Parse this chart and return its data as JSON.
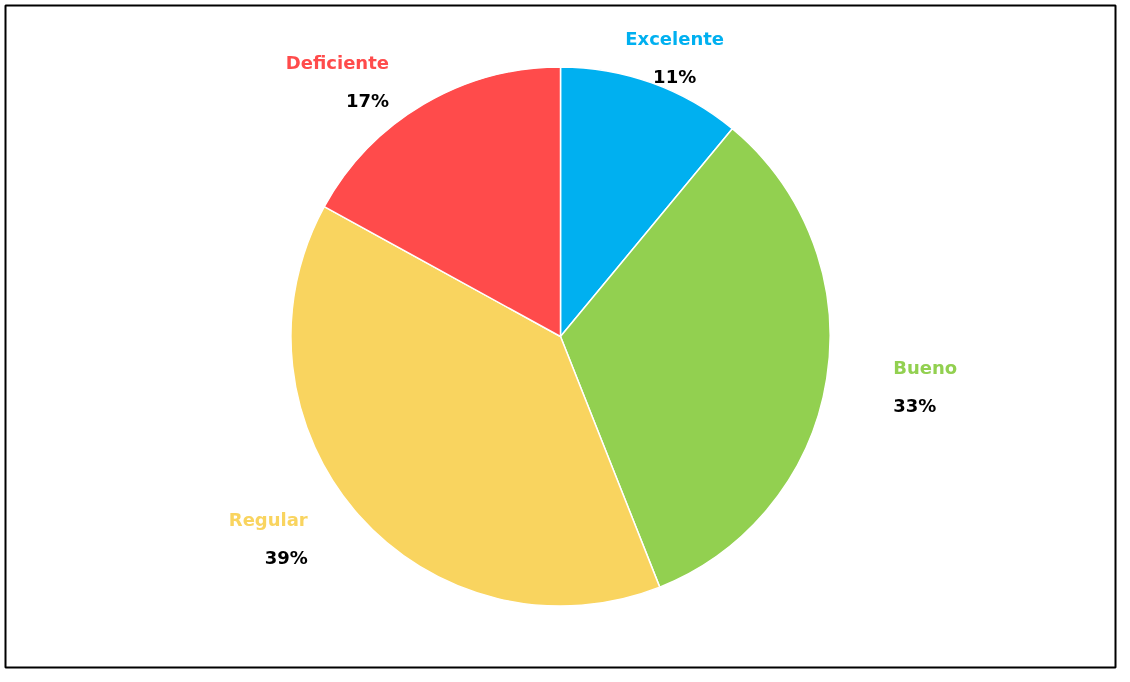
{
  "chart_data": {
    "type": "pie",
    "categories": [
      "Excelente",
      "Bueno",
      "Regular",
      "Deficiente"
    ],
    "values": [
      11,
      33,
      39,
      17
    ],
    "colors": [
      "#00b0f0",
      "#92d050",
      "#f9d45f",
      "#ff4b4b"
    ],
    "value_labels": [
      "11%",
      "33%",
      "39%",
      "17%"
    ]
  }
}
